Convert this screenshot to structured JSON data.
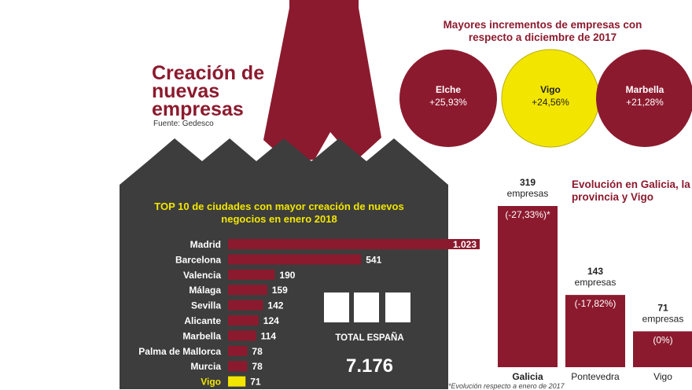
{
  "title": "Creación de nuevas empresas",
  "source": "Fuente: Gedesco",
  "colors": {
    "maroon": "#8c1a2e",
    "dark": "#3d3d3d",
    "yellow": "#f2e600"
  },
  "circles_title": "Mayores incrementos de empresas con respecto a diciembre de 2017",
  "circles": [
    {
      "name": "Elche",
      "value": "+25,93%"
    },
    {
      "name": "Vigo",
      "value": "+24,56%"
    },
    {
      "name": "Marbella",
      "value": "+21,28%"
    }
  ],
  "total": {
    "label": "TOTAL ESPAÑA",
    "value": "7.176"
  },
  "footnote": "*Evolución respecto a enero de 2017",
  "chart_data": [
    {
      "type": "bar",
      "orientation": "horizontal",
      "title": "TOP 10 de ciudades con mayor creación de nuevos negocios en enero 2018",
      "categories": [
        "Madrid",
        "Barcelona",
        "Valencia",
        "Málaga",
        "Sevilla",
        "Alicante",
        "Marbella",
        "Palma de Mallorca",
        "Murcia",
        "Vigo"
      ],
      "values": [
        1023,
        541,
        190,
        159,
        142,
        124,
        114,
        78,
        78,
        71
      ],
      "value_labels": [
        "1.023",
        "541",
        "190",
        "159",
        "142",
        "124",
        "114",
        "78",
        "78",
        "71"
      ],
      "highlight": "Vigo",
      "xlim": [
        0,
        1023
      ]
    },
    {
      "type": "bar",
      "title": "Evolución en Galicia, la provincia y Vigo",
      "categories": [
        "Galicia",
        "Pontevedra",
        "Vigo"
      ],
      "values": [
        319,
        143,
        71
      ],
      "value_labels": [
        "319",
        "143",
        "71"
      ],
      "unit_label": "empresas",
      "changes": [
        "(-27,33%)*",
        "(-17,82%)",
        "(0%)"
      ],
      "ylim": [
        0,
        319
      ]
    }
  ]
}
